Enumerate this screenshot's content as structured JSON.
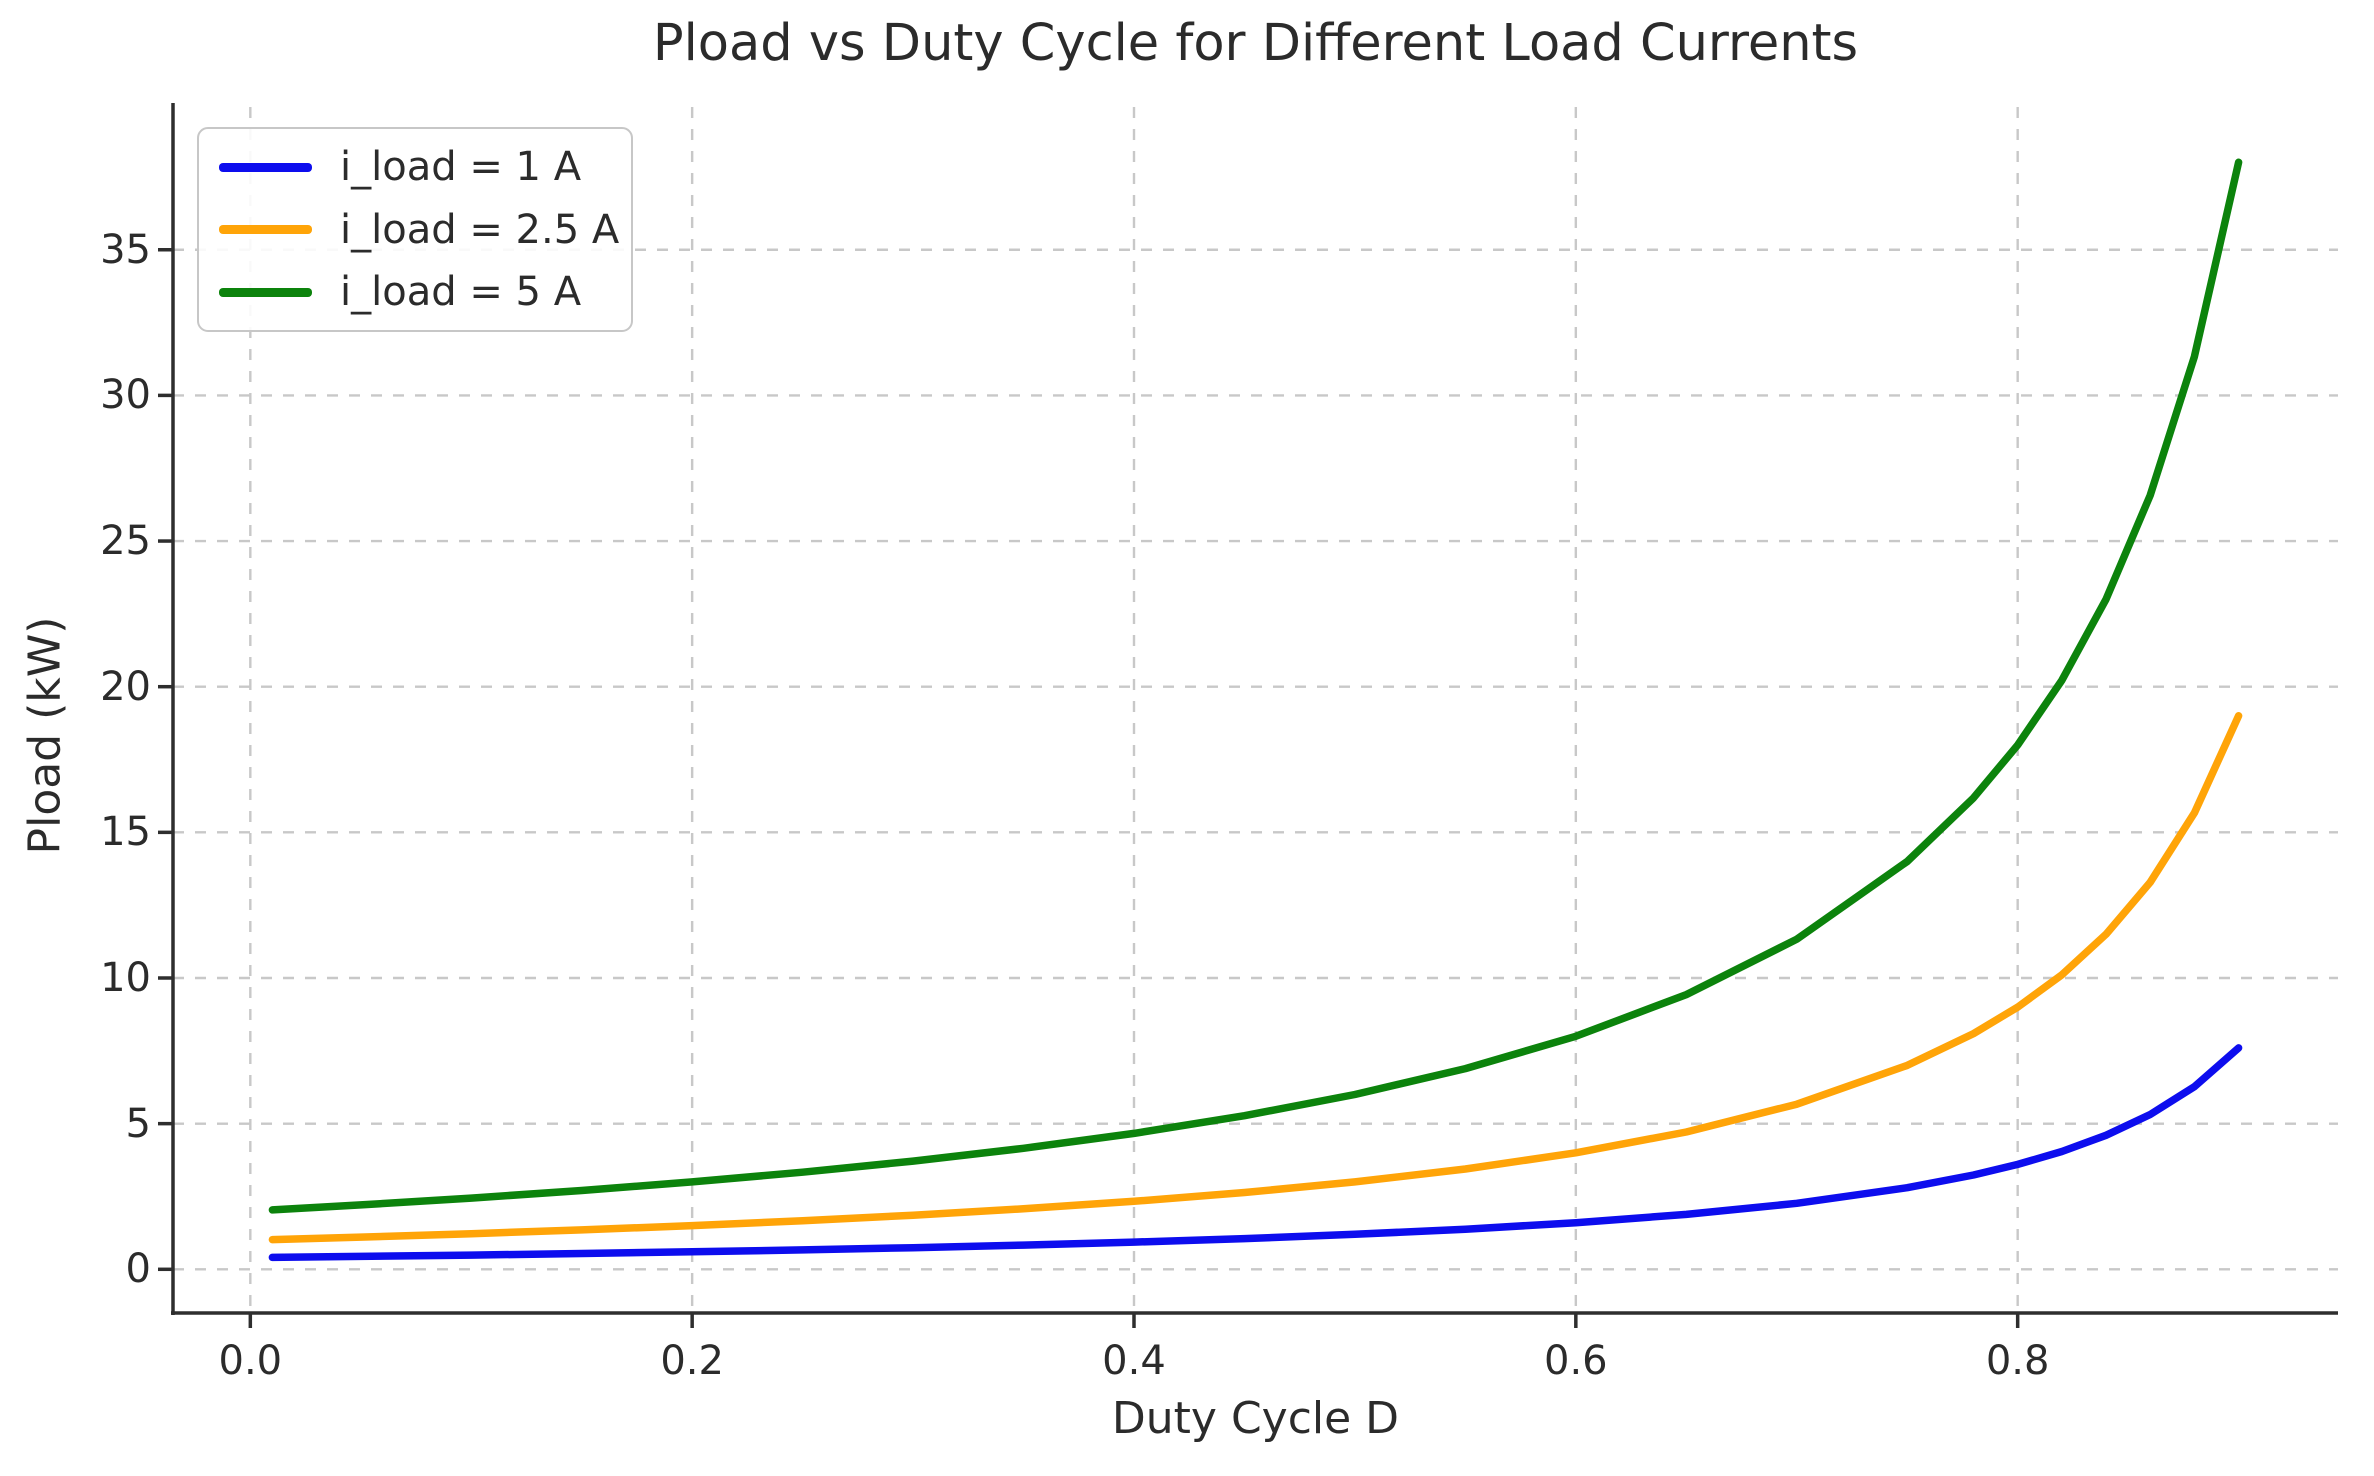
{
  "chart_data": {
    "type": "line",
    "title": "Pload vs Duty Cycle for Different Load Currents",
    "xlabel": "Duty Cycle D",
    "ylabel": "Pload (kW)",
    "x": [
      0.01,
      0.05,
      0.1,
      0.15,
      0.2,
      0.25,
      0.3,
      0.35,
      0.4,
      0.45,
      0.5,
      0.55,
      0.6,
      0.65,
      0.7,
      0.75,
      0.78,
      0.8,
      0.82,
      0.84,
      0.86,
      0.88,
      0.9
    ],
    "series": [
      {
        "name": "i_load = 1 A",
        "i_load_amps": 1,
        "color": "#0d0dee",
        "values": [
          0.408,
          0.442,
          0.489,
          0.541,
          0.6,
          0.667,
          0.743,
          0.831,
          0.933,
          1.055,
          1.2,
          1.378,
          1.6,
          1.886,
          2.267,
          2.8,
          3.236,
          3.6,
          4.044,
          4.6,
          5.314,
          6.267,
          7.6
        ]
      },
      {
        "name": "i_load = 2.5 A",
        "i_load_amps": 2.5,
        "color": "#ffa408",
        "values": [
          1.02,
          1.105,
          1.222,
          1.353,
          1.5,
          1.667,
          1.857,
          2.077,
          2.333,
          2.636,
          3.0,
          3.444,
          4.0,
          4.714,
          5.667,
          7.0,
          8.091,
          9.0,
          10.111,
          11.5,
          13.286,
          15.667,
          19.0
        ]
      },
      {
        "name": "i_load = 5 A",
        "i_load_amps": 5,
        "color": "#0c830c",
        "values": [
          2.04,
          2.211,
          2.444,
          2.706,
          3.0,
          3.333,
          3.714,
          4.154,
          4.667,
          5.273,
          6.0,
          6.889,
          8.0,
          9.429,
          11.333,
          14.0,
          16.182,
          18.0,
          20.222,
          23.0,
          26.571,
          31.333,
          38.0
        ]
      }
    ],
    "xlim": [
      -0.035,
      0.945
    ],
    "ylim": [
      -1.5,
      39.9
    ],
    "xticks": {
      "values": [
        0.0,
        0.2,
        0.4,
        0.6,
        0.8
      ],
      "labels": [
        "0.0",
        "0.2",
        "0.4",
        "0.6",
        "0.8"
      ]
    },
    "yticks": {
      "values": [
        0,
        5,
        10,
        15,
        20,
        25,
        30,
        35
      ],
      "labels": [
        "0",
        "5",
        "10",
        "15",
        "20",
        "25",
        "30",
        "35"
      ]
    },
    "grid": true,
    "grid_style": "dashed",
    "legend_position": "upper left"
  },
  "colors": {
    "background": "#ffffff",
    "text": "#2b2b2b",
    "grid": "#c8c8c8",
    "spine": "#2e2e2e",
    "legend_border": "#c7c7c7"
  }
}
